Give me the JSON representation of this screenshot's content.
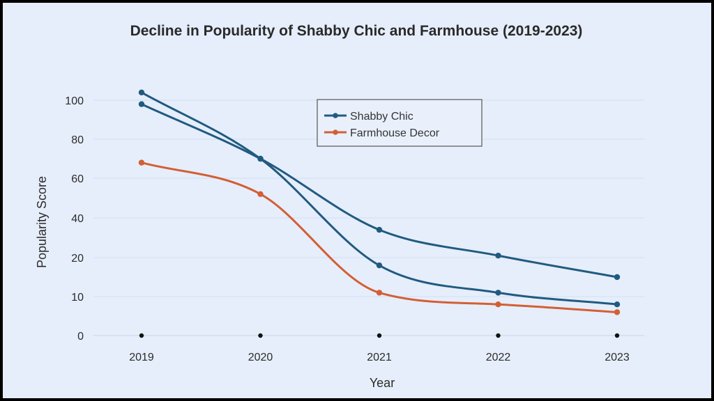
{
  "chart_data": {
    "type": "line",
    "title": "Decline in Popularity of Shabby Chic and Farmhouse (2019-2023)",
    "xlabel": "Year",
    "ylabel": "Popularity Score",
    "categories": [
      "2019",
      "2020",
      "2021",
      "2022",
      "2023"
    ],
    "y_ticks": [
      "0",
      "10",
      "20",
      "40",
      "60",
      "80",
      "100"
    ],
    "grid": true,
    "legend_position": "top-center",
    "series": [
      {
        "name": "Shabby Chic",
        "color": "#215a80",
        "points": [
          {
            "x": "2019",
            "y": 104
          },
          {
            "x": "2020",
            "y": 70
          },
          {
            "x": "2021",
            "y": 18
          },
          {
            "x": "2022",
            "y": 11
          },
          {
            "x": "2023",
            "y": 8
          }
        ]
      },
      {
        "name": "",
        "color": "#215a80",
        "points": [
          {
            "x": "2019",
            "y": 98
          },
          {
            "x": "2020",
            "y": 70
          },
          {
            "x": "2021",
            "y": 34
          },
          {
            "x": "2022",
            "y": 21
          },
          {
            "x": "2023",
            "y": 15
          }
        ]
      },
      {
        "name": "Farmhouse Decor",
        "color": "#d35f35",
        "points": [
          {
            "x": "2019",
            "y": 68
          },
          {
            "x": "2020",
            "y": 52
          },
          {
            "x": "2021",
            "y": 11
          },
          {
            "x": "2022",
            "y": 8
          },
          {
            "x": "2023",
            "y": 6
          }
        ]
      }
    ]
  }
}
